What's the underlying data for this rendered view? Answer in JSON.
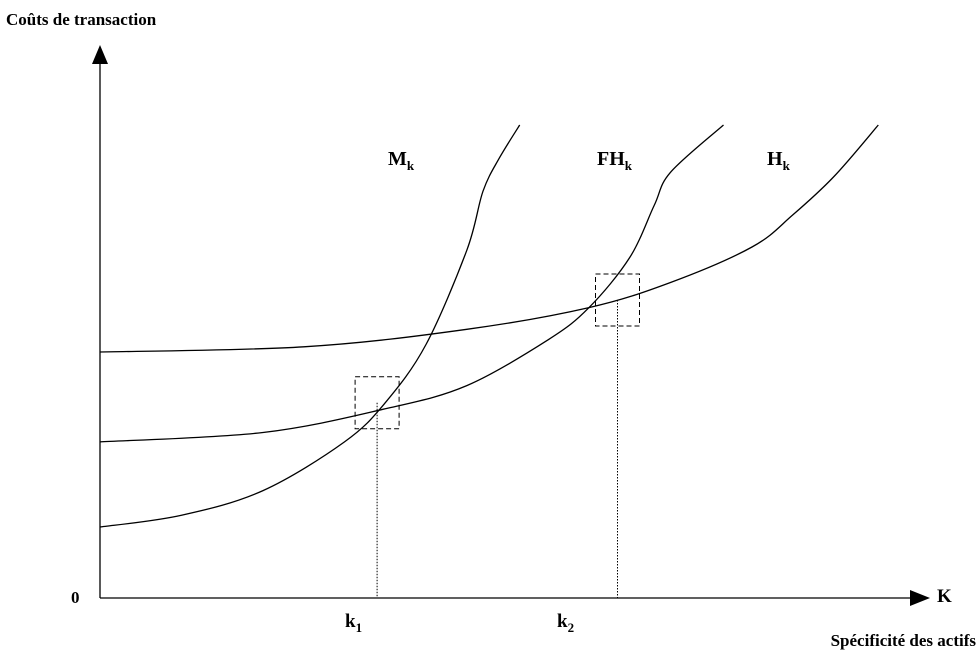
{
  "chart_data": {
    "type": "line",
    "title": "",
    "ylabel": "Coûts de transaction",
    "xlabel": "Spécificité des actifs",
    "x_axis_symbol": "K",
    "origin_label": "0",
    "xlim": [
      0,
      100
    ],
    "ylim": [
      0,
      100
    ],
    "series": [
      {
        "name": "M",
        "name_sub": "k",
        "x": [
          0,
          10,
          20,
          30,
          35,
          40,
          45,
          47,
          49,
          51.5
        ],
        "y": [
          15,
          17.5,
          22.7,
          33,
          41.3,
          53.6,
          73.5,
          86,
          93,
          100
        ]
      },
      {
        "name": "FH",
        "name_sub": "k",
        "x": [
          0,
          20,
          35,
          45,
          55,
          60,
          65,
          68,
          70,
          76.5
        ],
        "y": [
          33,
          35,
          40,
          44.9,
          54.6,
          61.4,
          72,
          83,
          90,
          100
        ]
      },
      {
        "name": "H",
        "name_sub": "k",
        "x": [
          0,
          25,
          45,
          60,
          70,
          80,
          85,
          90,
          95.5
        ],
        "y": [
          52,
          53.1,
          56.8,
          61.4,
          66.7,
          74.2,
          81,
          89,
          100
        ]
      }
    ],
    "annotations": [
      {
        "label": "k",
        "label_sub": "1",
        "x": 34,
        "y": 41.3
      },
      {
        "label": "k",
        "label_sub": "2",
        "x": 63.5,
        "y": 63
      }
    ]
  }
}
